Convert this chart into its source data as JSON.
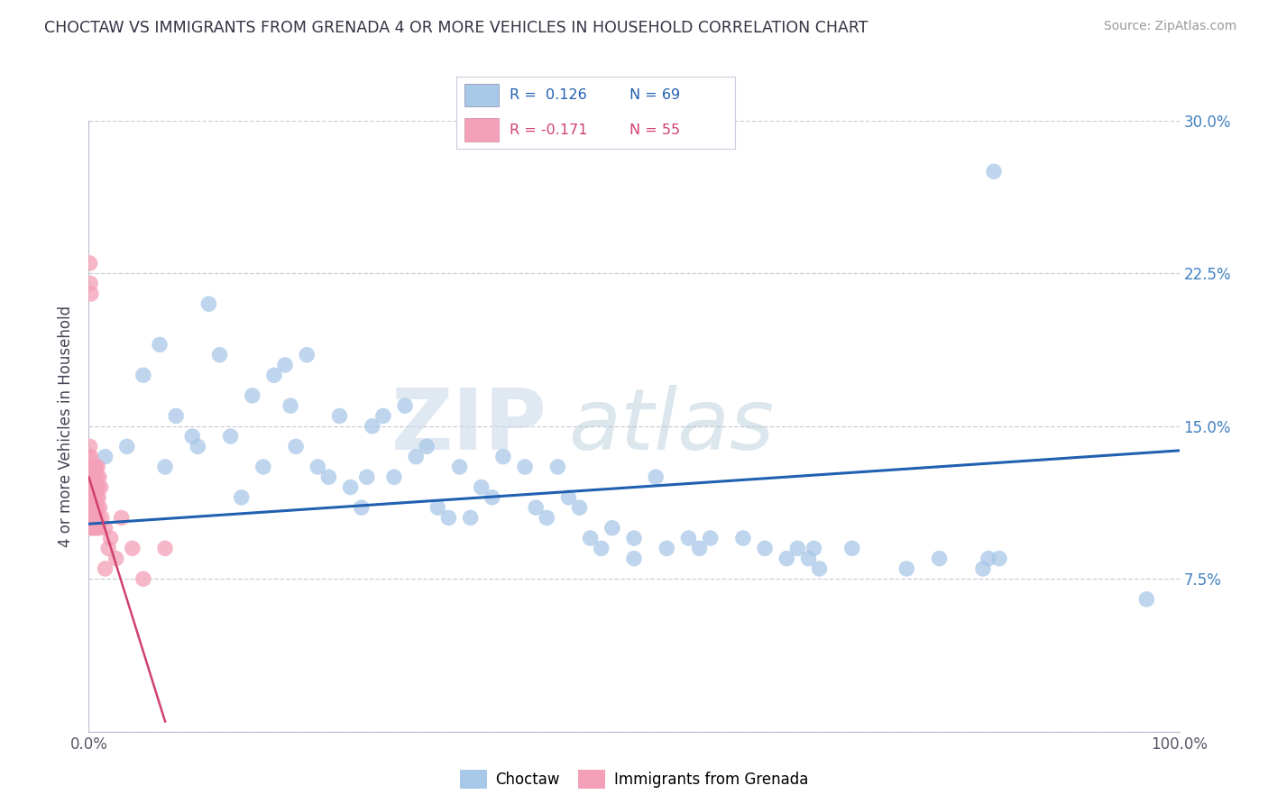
{
  "title": "CHOCTAW VS IMMIGRANTS FROM GRENADA 4 OR MORE VEHICLES IN HOUSEHOLD CORRELATION CHART",
  "source": "Source: ZipAtlas.com",
  "ylabel": "4 or more Vehicles in Household",
  "xlim": [
    0,
    100
  ],
  "ylim": [
    0,
    30
  ],
  "blue_color": "#a8c8e8",
  "pink_color": "#f4a0b8",
  "blue_line_color": "#2060b0",
  "pink_line_color": "#d04070",
  "watermark_zip": "ZIP",
  "watermark_atlas": "atlas",
  "background_color": "#ffffff",
  "grid_color": "#c8c8d8",
  "right_tick_color": "#4080c0",
  "choctaw_x": [
    1.5,
    3.5,
    5.0,
    6.5,
    7.0,
    8.0,
    9.5,
    10.0,
    11.0,
    12.0,
    13.0,
    14.0,
    15.0,
    16.0,
    17.0,
    18.0,
    18.5,
    19.0,
    20.0,
    21.0,
    22.0,
    23.0,
    24.0,
    25.0,
    25.5,
    26.0,
    27.0,
    28.0,
    29.0,
    30.0,
    31.0,
    32.0,
    33.0,
    34.0,
    35.0,
    36.0,
    37.0,
    38.0,
    40.0,
    41.0,
    42.0,
    43.0,
    44.0,
    45.0,
    46.0,
    47.0,
    48.0,
    50.0,
    50.0,
    52.0,
    53.0,
    55.0,
    56.0,
    57.0,
    60.0,
    62.0,
    64.0,
    65.0,
    66.0,
    66.5,
    67.0,
    70.0,
    75.0,
    78.0,
    82.0,
    82.5,
    83.0,
    83.5,
    97.0
  ],
  "choctaw_y": [
    13.5,
    14.0,
    17.5,
    19.0,
    13.0,
    15.5,
    14.5,
    14.0,
    21.0,
    18.5,
    14.5,
    11.5,
    16.5,
    13.0,
    17.5,
    18.0,
    16.0,
    14.0,
    18.5,
    13.0,
    12.5,
    15.5,
    12.0,
    11.0,
    12.5,
    15.0,
    15.5,
    12.5,
    16.0,
    13.5,
    14.0,
    11.0,
    10.5,
    13.0,
    10.5,
    12.0,
    11.5,
    13.5,
    13.0,
    11.0,
    10.5,
    13.0,
    11.5,
    11.0,
    9.5,
    9.0,
    10.0,
    9.5,
    8.5,
    12.5,
    9.0,
    9.5,
    9.0,
    9.5,
    9.5,
    9.0,
    8.5,
    9.0,
    8.5,
    9.0,
    8.0,
    9.0,
    8.0,
    8.5,
    8.0,
    8.5,
    27.5,
    8.5,
    6.5
  ],
  "grenada_x": [
    0.05,
    0.08,
    0.1,
    0.1,
    0.12,
    0.15,
    0.15,
    0.18,
    0.2,
    0.22,
    0.25,
    0.28,
    0.3,
    0.3,
    0.32,
    0.35,
    0.38,
    0.4,
    0.42,
    0.45,
    0.48,
    0.5,
    0.52,
    0.55,
    0.58,
    0.6,
    0.62,
    0.65,
    0.68,
    0.7,
    0.72,
    0.75,
    0.78,
    0.8,
    0.82,
    0.85,
    0.88,
    0.9,
    0.92,
    0.95,
    1.0,
    1.1,
    1.2,
    1.5,
    1.8,
    2.0,
    2.5,
    3.0,
    4.0,
    5.0,
    7.0,
    0.1,
    0.15,
    0.2,
    1.5
  ],
  "grenada_y": [
    13.5,
    11.0,
    14.0,
    10.5,
    11.5,
    12.0,
    10.0,
    13.5,
    11.0,
    12.5,
    10.5,
    11.0,
    12.0,
    13.0,
    10.0,
    11.5,
    12.5,
    10.5,
    13.0,
    11.0,
    12.0,
    10.5,
    11.5,
    13.0,
    10.0,
    12.5,
    11.0,
    10.5,
    13.0,
    12.0,
    11.5,
    10.0,
    12.5,
    13.0,
    11.0,
    10.5,
    12.0,
    11.5,
    10.0,
    12.5,
    11.0,
    12.0,
    10.5,
    10.0,
    9.0,
    9.5,
    8.5,
    10.5,
    9.0,
    7.5,
    9.0,
    23.0,
    22.0,
    21.5,
    8.0
  ],
  "blue_trend_x0": 0,
  "blue_trend_x1": 100,
  "blue_trend_y0": 10.2,
  "blue_trend_y1": 13.8,
  "pink_trend_x0": 0,
  "pink_trend_x1": 7,
  "pink_trend_y0": 12.5,
  "pink_trend_y1": 0.5
}
